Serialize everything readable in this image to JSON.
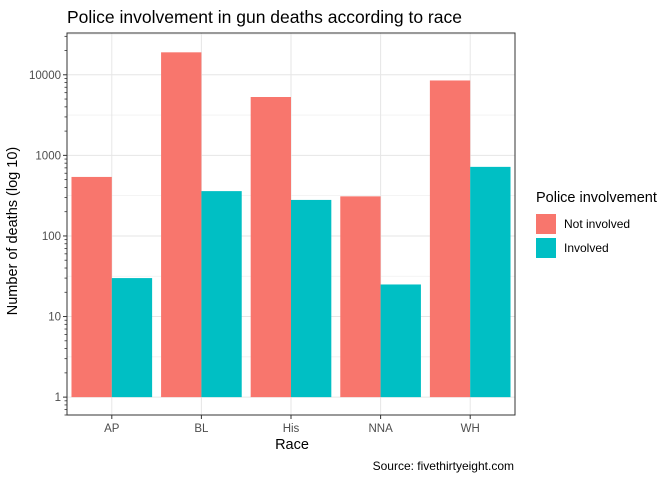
{
  "chart_data": {
    "type": "bar",
    "title": "Police involvement in gun deaths according to race",
    "xlabel": "Race",
    "ylabel": "Number of deaths (log 10)",
    "source": "Source: fivethirtyeight.com",
    "y_scale": "log10",
    "ylim": [
      0.6,
      33000
    ],
    "grid": true,
    "legend_position": "right",
    "legend_title": "Police involvement",
    "categories": [
      "AP",
      "BL",
      "His",
      "NNA",
      "WH"
    ],
    "y_ticks": [
      {
        "value": 1,
        "label": "1"
      },
      {
        "value": 10,
        "label": "10"
      },
      {
        "value": 100,
        "label": "100"
      },
      {
        "value": 1000,
        "label": "1000"
      },
      {
        "value": 10000,
        "label": "10000"
      }
    ],
    "series": [
      {
        "name": "Not involved",
        "color": "#F8766D",
        "values": [
          540,
          19000,
          5300,
          310,
          8500
        ]
      },
      {
        "name": "Involved",
        "color": "#00BFC4",
        "values": [
          30,
          360,
          280,
          25,
          720
        ]
      }
    ]
  }
}
